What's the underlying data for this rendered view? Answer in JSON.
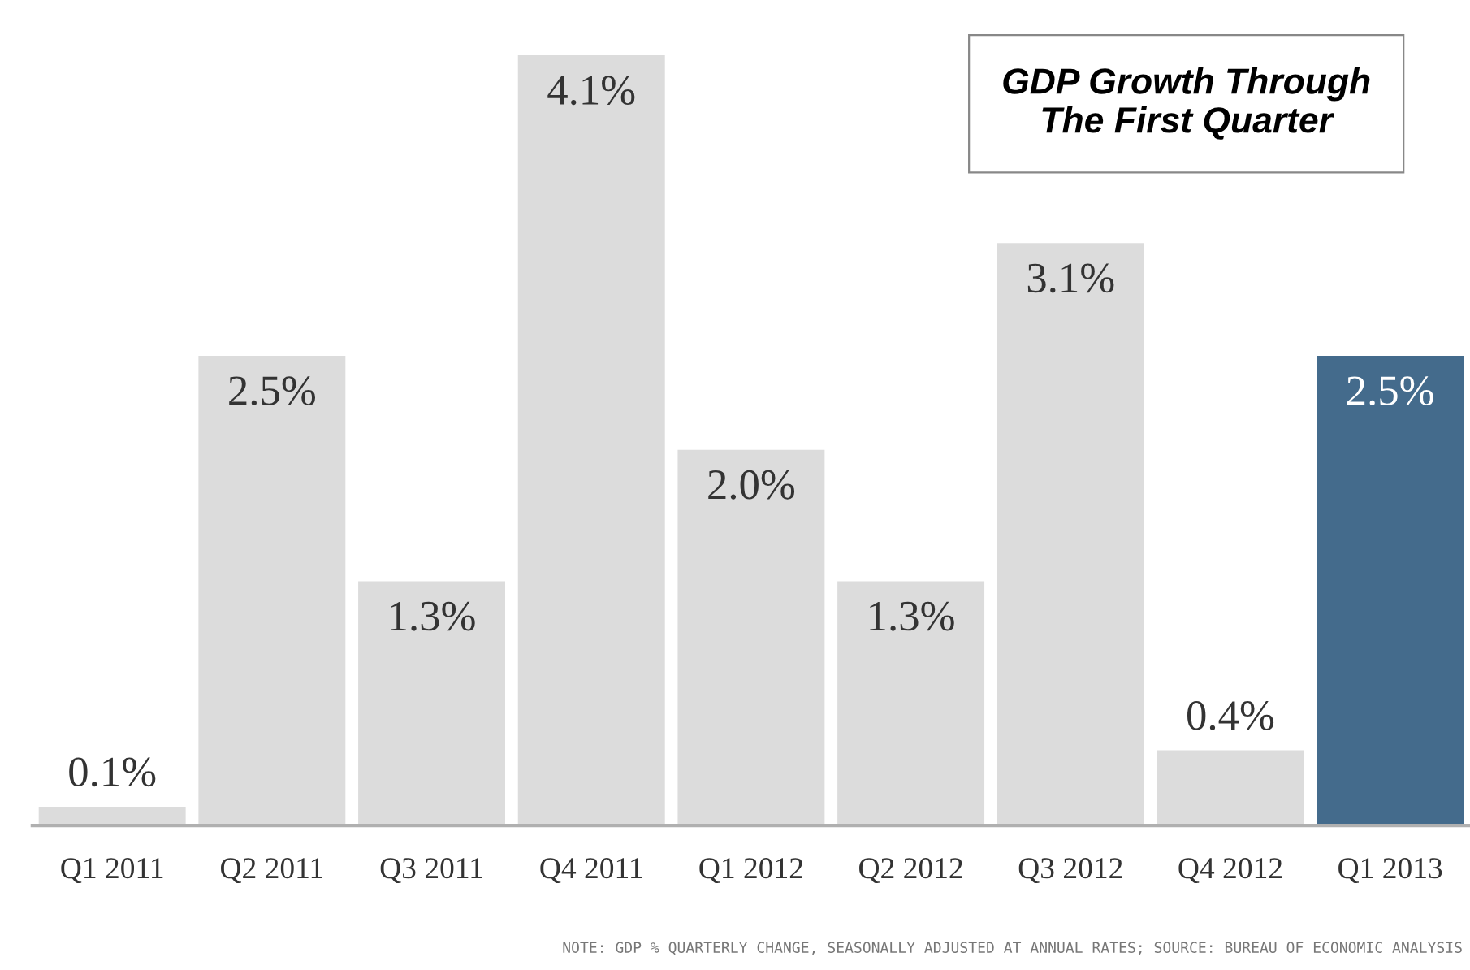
{
  "chart_data": {
    "type": "bar",
    "title": "GDP Growth Through\nThe First Quarter",
    "categories": [
      "Q1 2011",
      "Q2 2011",
      "Q3 2011",
      "Q4 2011",
      "Q1 2012",
      "Q2 2012",
      "Q3 2012",
      "Q4 2012",
      "Q1 2013"
    ],
    "values": [
      0.1,
      2.5,
      1.3,
      4.1,
      2.0,
      1.3,
      3.1,
      0.4,
      2.5
    ],
    "value_labels": [
      "0.1%",
      "2.5%",
      "1.3%",
      "4.1%",
      "2.0%",
      "1.3%",
      "3.1%",
      "0.4%",
      "2.5%"
    ],
    "colors": [
      "#dcdcdc",
      "#dcdcdc",
      "#dcdcdc",
      "#dcdcdc",
      "#dcdcdc",
      "#dcdcdc",
      "#dcdcdc",
      "#dcdcdc",
      "#446b8c"
    ],
    "annotations": [
      "NOTE: GDP % QUARTERLY CHANGE, SEASONALLY ADJUSTED AT ANNUAL RATES; SOURCE: BUREAU OF ECONOMIC ANALYSIS"
    ],
    "grid": false,
    "legend": false
  }
}
